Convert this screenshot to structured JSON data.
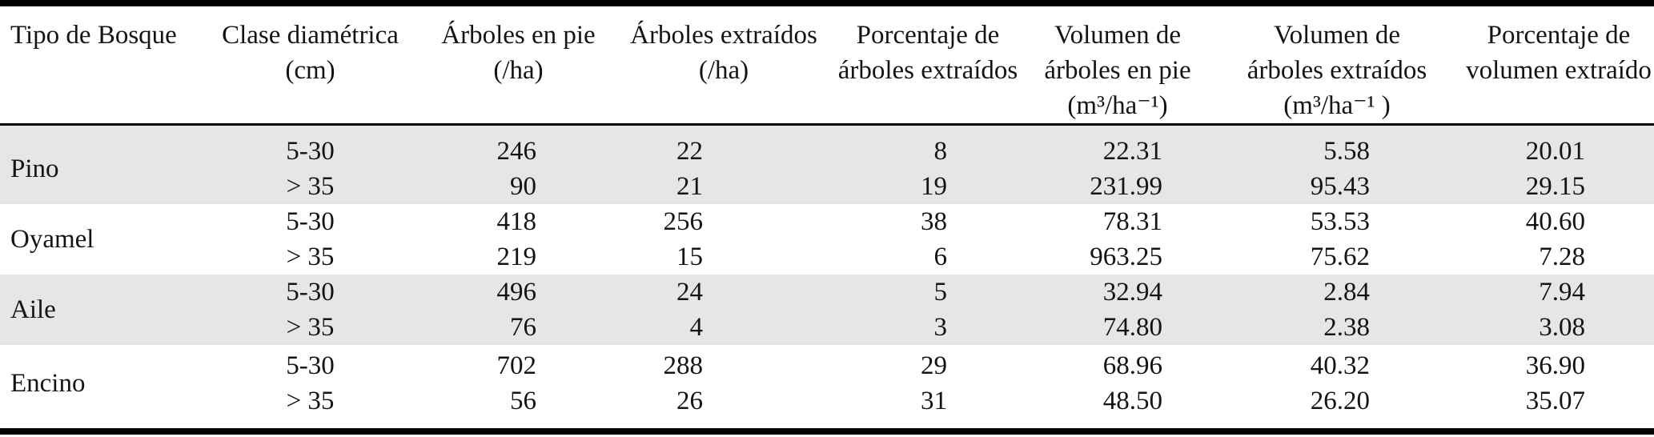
{
  "table": {
    "headers": {
      "col1": [
        "Tipo de Bosque"
      ],
      "col2": [
        "Clase diamétrica",
        "(cm)"
      ],
      "col3": [
        "Árboles en pie",
        "(/ha)"
      ],
      "col4": [
        "Árboles extraídos",
        "(/ha)"
      ],
      "col5": [
        "Porcentaje de",
        "árboles extraídos"
      ],
      "col6": [
        "Volumen de",
        "árboles en pie",
        "(m³/ha⁻¹)"
      ],
      "col7": [
        "Volumen de",
        "árboles extraídos",
        "(m³/ha⁻¹ )"
      ],
      "col8": [
        "Porcentaje de",
        "volumen extraído"
      ]
    },
    "groups": [
      {
        "name": "Pino",
        "rows": [
          {
            "clase": "5-30",
            "arboles_en_pie": "246",
            "arboles_extraidos": "22",
            "pct_arboles_extraidos": "8",
            "vol_arboles_en_pie": "22.31",
            "vol_arboles_extraidos": "5.58",
            "pct_volumen_extraido": "20.01"
          },
          {
            "clase": "> 35",
            "arboles_en_pie": "90",
            "arboles_extraidos": "21",
            "pct_arboles_extraidos": "19",
            "vol_arboles_en_pie": "231.99",
            "vol_arboles_extraidos": "95.43",
            "pct_volumen_extraido": "29.15"
          }
        ]
      },
      {
        "name": "Oyamel",
        "rows": [
          {
            "clase": "5-30",
            "arboles_en_pie": "418",
            "arboles_extraidos": "256",
            "pct_arboles_extraidos": "38",
            "vol_arboles_en_pie": "78.31",
            "vol_arboles_extraidos": "53.53",
            "pct_volumen_extraido": "40.60"
          },
          {
            "clase": "> 35",
            "arboles_en_pie": "219",
            "arboles_extraidos": "15",
            "pct_arboles_extraidos": "6",
            "vol_arboles_en_pie": "963.25",
            "vol_arboles_extraidos": "75.62",
            "pct_volumen_extraido": "7.28"
          }
        ]
      },
      {
        "name": "Aile",
        "rows": [
          {
            "clase": "5-30",
            "arboles_en_pie": "496",
            "arboles_extraidos": "24",
            "pct_arboles_extraidos": "5",
            "vol_arboles_en_pie": "32.94",
            "vol_arboles_extraidos": "2.84",
            "pct_volumen_extraido": "7.94"
          },
          {
            "clase": "> 35",
            "arboles_en_pie": "76",
            "arboles_extraidos": "4",
            "pct_arboles_extraidos": "3",
            "vol_arboles_en_pie": "74.80",
            "vol_arboles_extraidos": "2.38",
            "pct_volumen_extraido": "3.08"
          }
        ]
      },
      {
        "name": "Encino",
        "rows": [
          {
            "clase": "5-30",
            "arboles_en_pie": "702",
            "arboles_extraidos": "288",
            "pct_arboles_extraidos": "29",
            "vol_arboles_en_pie": "68.96",
            "vol_arboles_extraidos": "40.32",
            "pct_volumen_extraido": "36.90"
          },
          {
            "clase": "> 35",
            "arboles_en_pie": "56",
            "arboles_extraidos": "26",
            "pct_arboles_extraidos": "31",
            "vol_arboles_en_pie": "48.50",
            "vol_arboles_extraidos": "26.20",
            "pct_volumen_extraido": "35.07"
          }
        ]
      }
    ]
  },
  "colors": {
    "row_shade": "#e6e6e6",
    "rule": "#000000",
    "text": "#141414",
    "background": "#ffffff"
  }
}
